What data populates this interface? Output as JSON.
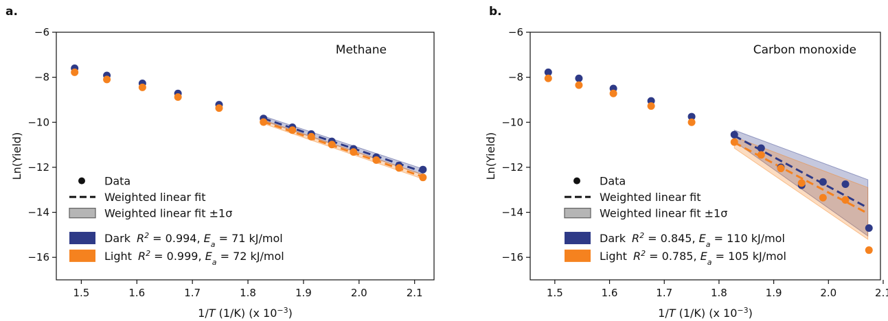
{
  "chart_data": [
    {
      "type": "scatter",
      "panel_label": "a.",
      "annotation": "Methane",
      "xlabel": {
        "prefix": "1/",
        "italic": "T",
        "suffix": " (1/K) (x 10",
        "sup": "−3",
        "close": ")"
      },
      "ylabel": "Ln(Yield)",
      "xlim": [
        1.455,
        2.135
      ],
      "ylim": [
        -17.0,
        -6.0
      ],
      "xticks": [
        "1.5",
        "1.6",
        "1.7",
        "1.8",
        "1.9",
        "2.0",
        "2.1"
      ],
      "yticks": [
        "−6",
        "−8",
        "−10",
        "−12",
        "−14",
        "−16"
      ],
      "grid": false,
      "legend_position": "lower-left",
      "legend": {
        "data": "Data",
        "fit": "Weighted linear fit",
        "band": "Weighted linear fit ±1σ"
      },
      "series": [
        {
          "name": "Dark",
          "color": "#2e3a87",
          "r2": "0.994",
          "ea": "71 kJ/mol",
          "x": [
            1.488,
            1.546,
            1.61,
            1.674,
            1.748,
            1.828,
            1.88,
            1.914,
            1.951,
            1.99,
            2.031,
            2.072,
            2.115
          ],
          "y": [
            -7.6,
            -7.92,
            -8.27,
            -8.72,
            -9.22,
            -9.83,
            -10.22,
            -10.52,
            -10.85,
            -11.18,
            -11.55,
            -11.92,
            -12.1
          ],
          "fit": {
            "x": [
              1.828,
              2.115
            ],
            "y": [
              -9.83,
              -12.2
            ]
          },
          "band": {
            "x": [
              1.828,
              2.115
            ],
            "upper": [
              -9.73,
              -12.07
            ],
            "lower": [
              -9.93,
              -12.33
            ]
          }
        },
        {
          "name": "Light",
          "color": "#f5821f",
          "r2": "0.999",
          "ea": "72 kJ/mol",
          "x": [
            1.488,
            1.546,
            1.61,
            1.674,
            1.748,
            1.828,
            1.88,
            1.914,
            1.951,
            1.99,
            2.031,
            2.072,
            2.115
          ],
          "y": [
            -7.78,
            -8.1,
            -8.45,
            -8.88,
            -9.37,
            -9.99,
            -10.35,
            -10.64,
            -10.99,
            -11.32,
            -11.68,
            -12.03,
            -12.45
          ],
          "fit": {
            "x": [
              1.828,
              2.115
            ],
            "y": [
              -9.98,
              -12.42
            ]
          },
          "band": {
            "x": [
              1.828,
              2.115
            ],
            "upper": [
              -9.9,
              -12.32
            ],
            "lower": [
              -10.06,
              -12.52
            ]
          }
        }
      ]
    },
    {
      "type": "scatter",
      "panel_label": "b.",
      "annotation": "Carbon monoxide",
      "xlabel": {
        "prefix": "1/",
        "italic": "T",
        "suffix": " (1/K) (x 10",
        "sup": "−3",
        "close": ")"
      },
      "ylabel": "Ln(Yield)",
      "xlim": [
        1.455,
        2.095
      ],
      "ylim": [
        -17.0,
        -6.0
      ],
      "xticks": [
        "1.5",
        "1.6",
        "1.7",
        "1.8",
        "1.9",
        "2.0",
        "2.1"
      ],
      "yticks": [
        "−6",
        "−8",
        "−10",
        "−12",
        "−14",
        "−16"
      ],
      "grid": false,
      "legend_position": "lower-left",
      "legend": {
        "data": "Data",
        "fit": "Weighted linear fit",
        "band": "Weighted linear fit ±1σ"
      },
      "series": [
        {
          "name": "Dark",
          "color": "#2e3a87",
          "r2": "0.845",
          "ea": "110 kJ/mol",
          "x": [
            1.488,
            1.544,
            1.607,
            1.676,
            1.75,
            1.828,
            1.877,
            1.913,
            1.951,
            1.99,
            2.031,
            2.074
          ],
          "y": [
            -7.78,
            -8.05,
            -8.5,
            -9.05,
            -9.75,
            -10.55,
            -11.15,
            -12.0,
            -12.8,
            -12.65,
            -12.75,
            -14.7
          ],
          "fit": {
            "x": [
              1.828,
              2.072
            ],
            "y": [
              -10.6,
              -13.8
            ]
          },
          "band": {
            "x": [
              1.828,
              2.072
            ],
            "upper": [
              -10.35,
              -12.55
            ],
            "lower": [
              -10.85,
              -15.05
            ]
          }
        },
        {
          "name": "Light",
          "color": "#f5821f",
          "r2": "0.785",
          "ea": "105 kJ/mol",
          "x": [
            1.488,
            1.544,
            1.607,
            1.676,
            1.75,
            1.828,
            1.877,
            1.913,
            1.951,
            1.99,
            2.031,
            2.074
          ],
          "y": [
            -8.05,
            -8.35,
            -8.72,
            -9.28,
            -10.0,
            -10.88,
            -11.45,
            -12.05,
            -12.7,
            -13.35,
            -13.45,
            -15.68
          ],
          "fit": {
            "x": [
              1.828,
              2.072
            ],
            "y": [
              -10.9,
              -14.05
            ]
          },
          "band": {
            "x": [
              1.828,
              2.072
            ],
            "upper": [
              -10.65,
              -12.9
            ],
            "lower": [
              -11.15,
              -15.2
            ]
          }
        }
      ]
    }
  ]
}
